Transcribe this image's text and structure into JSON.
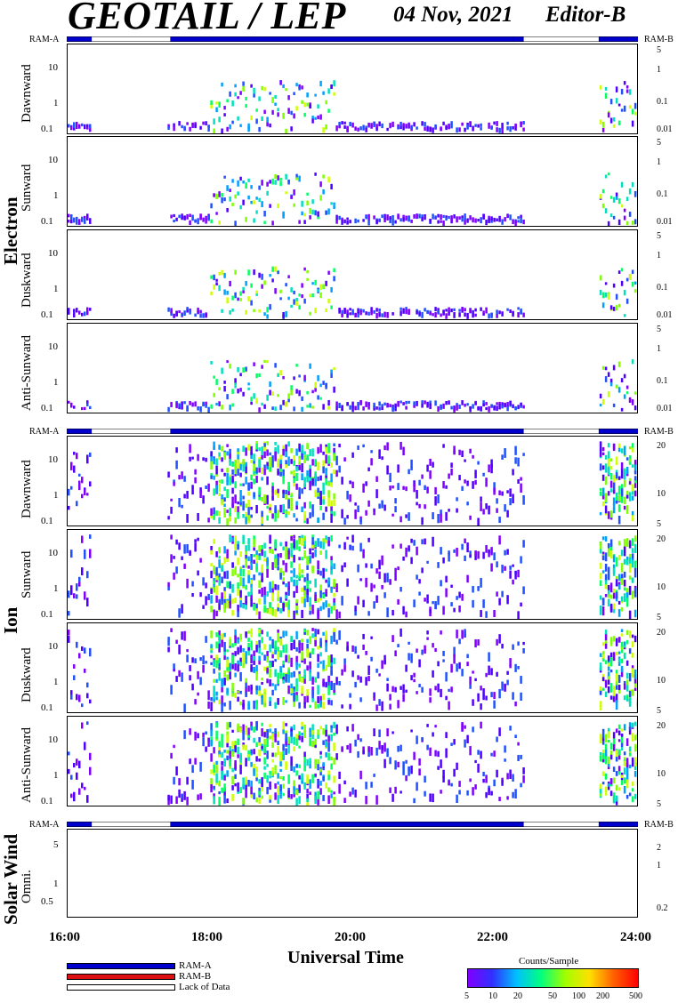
{
  "header": {
    "title": "GEOTAIL / LEP",
    "date": "04 Nov, 2021",
    "editor": "Editor-B"
  },
  "ram_labels": {
    "a": "RAM-A",
    "b": "RAM-B"
  },
  "groups": {
    "electron": "Electron",
    "ion": "Ion",
    "solar": "Solar Wind"
  },
  "panels": [
    {
      "label": "Dawnward",
      "left_ticks": [
        "10",
        "1",
        "0.1"
      ],
      "right_ticks": [
        "5",
        "1",
        "0.1",
        "0.01"
      ]
    },
    {
      "label": "Sunward",
      "left_ticks": [
        "10",
        "1",
        "0.1"
      ],
      "right_ticks": [
        "5",
        "1",
        "0.1",
        "0.01"
      ]
    },
    {
      "label": "Duskward",
      "left_ticks": [
        "10",
        "1",
        "0.1"
      ],
      "right_ticks": [
        "5",
        "1",
        "0.1",
        "0.01"
      ]
    },
    {
      "label": "Anti-Sunward",
      "left_ticks": [
        "10",
        "1",
        "0.1"
      ],
      "right_ticks": [
        "5",
        "1",
        "0.1",
        "0.01"
      ]
    },
    {
      "label": "Dawnward",
      "left_ticks": [
        "10",
        "1",
        "0.1"
      ],
      "right_ticks": [
        "20",
        "10",
        "5"
      ]
    },
    {
      "label": "Sunward",
      "left_ticks": [
        "10",
        "1",
        "0.1"
      ],
      "right_ticks": [
        "20",
        "10",
        "5"
      ]
    },
    {
      "label": "Duskward",
      "left_ticks": [
        "10",
        "1",
        "0.1"
      ],
      "right_ticks": [
        "20",
        "10",
        "5"
      ]
    },
    {
      "label": "Anti-Sunward",
      "left_ticks": [
        "10",
        "1",
        "0.1"
      ],
      "right_ticks": [
        "20",
        "10",
        "5"
      ]
    },
    {
      "label": "Omni.",
      "left_ticks": [
        "5",
        "1",
        "0.5"
      ],
      "right_ticks": [
        "2",
        "1",
        "0.2"
      ]
    }
  ],
  "x_ticks": [
    "16:00",
    "18:00",
    "20:00",
    "22:00",
    "24:00"
  ],
  "x_label": "Universal Time",
  "legend": {
    "ram_a": "RAM-A",
    "ram_b": "RAM-B",
    "lack": "Lack of Data",
    "colors": {
      "ram_a": "#0000cc",
      "ram_b": "#dd1111",
      "lack": "#ffffff"
    }
  },
  "colorbar": {
    "title": "Counts/Sample",
    "ticks": [
      "5",
      "10",
      "20",
      "50",
      "100",
      "200",
      "500"
    ]
  },
  "chart_data": {
    "type": "heatmap",
    "x_range_hours": [
      16,
      24
    ],
    "ram_a_coverage_hours": [
      [
        16.0,
        16.35
      ],
      [
        17.45,
        22.4
      ],
      [
        23.45,
        24.0
      ]
    ],
    "electron_activity_hours": [
      [
        16.0,
        16.3
      ],
      [
        17.4,
        22.4
      ],
      [
        23.45,
        24.0
      ]
    ],
    "ion_activity_hours": [
      [
        16.0,
        16.3
      ],
      [
        17.4,
        22.4
      ],
      [
        23.45,
        24.0
      ]
    ],
    "solar_wind": "no data"
  }
}
